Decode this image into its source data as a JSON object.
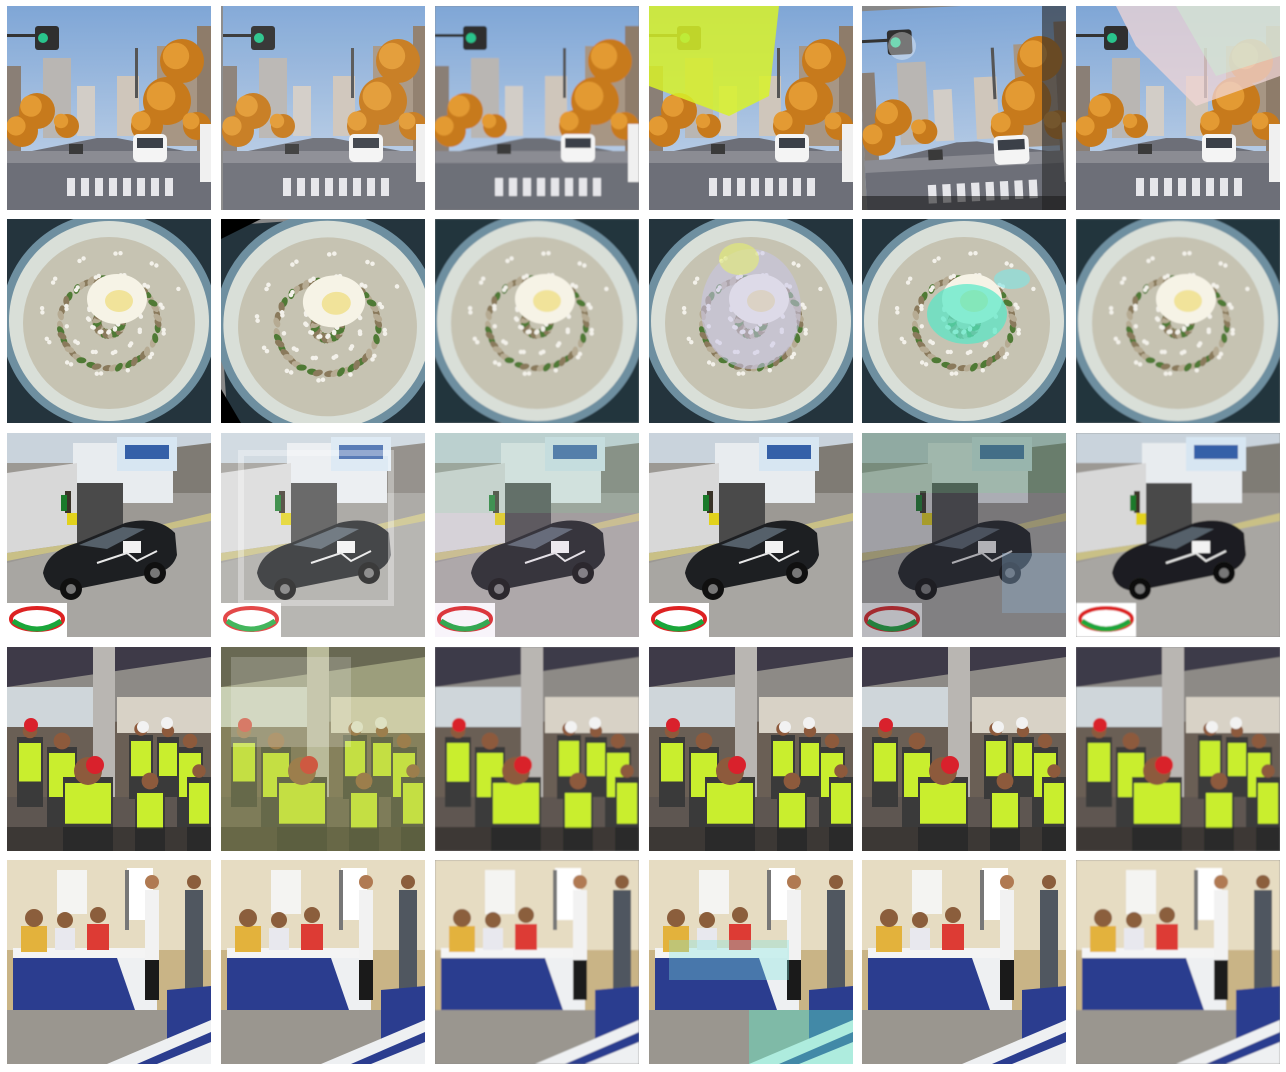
{
  "figure": {
    "rows": [
      {
        "scene": "street-autumn-trees",
        "tiles": [
          {
            "variant": "original",
            "artifact": "none"
          },
          {
            "variant": "reconstruction",
            "artifact": "slight-shift"
          },
          {
            "variant": "reconstruction",
            "artifact": "smooth"
          },
          {
            "variant": "reconstruction",
            "artifact": "yellow-sky-patch"
          },
          {
            "variant": "reconstruction",
            "artifact": "rotated-ghosting"
          },
          {
            "variant": "reconstruction",
            "artifact": "pastel-sky-patch"
          }
        ]
      },
      {
        "scene": "salad-bowl",
        "tiles": [
          {
            "variant": "original",
            "artifact": "none"
          },
          {
            "variant": "reconstruction",
            "artifact": "rotated"
          },
          {
            "variant": "reconstruction",
            "artifact": "smooth"
          },
          {
            "variant": "reconstruction",
            "artifact": "pastel-center-patch"
          },
          {
            "variant": "reconstruction",
            "artifact": "cyan-center-patch"
          },
          {
            "variant": "reconstruction",
            "artifact": "smooth"
          }
        ]
      },
      {
        "scene": "rally-car",
        "tiles": [
          {
            "variant": "original",
            "artifact": "none"
          },
          {
            "variant": "reconstruction",
            "artifact": "ghosting"
          },
          {
            "variant": "reconstruction",
            "artifact": "color-shift"
          },
          {
            "variant": "reconstruction",
            "artifact": "slight"
          },
          {
            "variant": "reconstruction",
            "artifact": "dark-ghosting"
          },
          {
            "variant": "reconstruction",
            "artifact": "smooth"
          }
        ]
      },
      {
        "scene": "workers-safety-vests",
        "tiles": [
          {
            "variant": "original",
            "artifact": "none"
          },
          {
            "variant": "reconstruction",
            "artifact": "heavy-ghosting"
          },
          {
            "variant": "reconstruction",
            "artifact": "smooth"
          },
          {
            "variant": "reconstruction",
            "artifact": "slight"
          },
          {
            "variant": "reconstruction",
            "artifact": "slight"
          },
          {
            "variant": "reconstruction",
            "artifact": "smooth"
          }
        ]
      },
      {
        "scene": "meeting-room",
        "tiles": [
          {
            "variant": "original",
            "artifact": "none"
          },
          {
            "variant": "reconstruction",
            "artifact": "slight"
          },
          {
            "variant": "reconstruction",
            "artifact": "smooth"
          },
          {
            "variant": "reconstruction",
            "artifact": "cyan-noise"
          },
          {
            "variant": "reconstruction",
            "artifact": "slight"
          },
          {
            "variant": "reconstruction",
            "artifact": "smooth"
          }
        ]
      }
    ]
  }
}
